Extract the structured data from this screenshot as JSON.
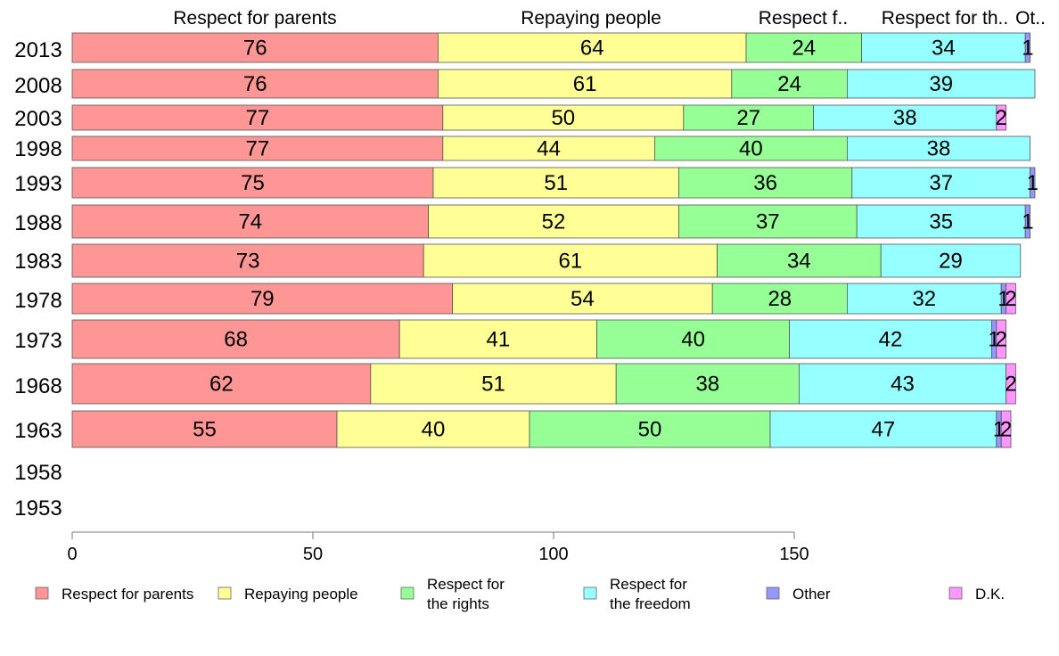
{
  "chart_data": {
    "type": "bar",
    "orientation": "horizontal",
    "stacked": true,
    "title": "",
    "xlabel": "",
    "ylabel": "",
    "xlim": [
      0,
      200
    ],
    "x_ticks": [
      0,
      50,
      100,
      150
    ],
    "grid": false,
    "legend_position": "bottom",
    "categories": [
      "2013",
      "2008",
      "2003",
      "1998",
      "1993",
      "1988",
      "1983",
      "1978",
      "1973",
      "1968",
      "1963",
      "1958",
      "1953"
    ],
    "column_headers": [
      "Respect for parents",
      "Repaying people",
      "Respect f..",
      "Respect for th..",
      "Ot.."
    ],
    "legend_entries": [
      "Respect for parents",
      "Repaying people",
      "Respect for\nthe rights",
      "Respect for\nthe freedom",
      "Other",
      "D.K."
    ],
    "series": [
      {
        "name": "Respect for parents",
        "color": "#ff9696",
        "values": [
          76,
          76,
          77,
          77,
          75,
          74,
          73,
          79,
          68,
          62,
          55,
          null,
          null
        ]
      },
      {
        "name": "Repaying people",
        "color": "#ffff96",
        "values": [
          64,
          61,
          50,
          44,
          51,
          52,
          61,
          54,
          41,
          51,
          40,
          null,
          null
        ]
      },
      {
        "name": "Respect for the rights",
        "color": "#96ff96",
        "values": [
          24,
          24,
          27,
          40,
          36,
          37,
          34,
          28,
          40,
          38,
          50,
          null,
          null
        ]
      },
      {
        "name": "Respect for the freedom",
        "color": "#96ffff",
        "values": [
          34,
          39,
          38,
          38,
          37,
          35,
          29,
          32,
          42,
          43,
          47,
          null,
          null
        ]
      },
      {
        "name": "Other",
        "color": "#9696ff",
        "values": [
          1,
          0,
          0,
          0,
          1,
          1,
          0,
          1,
          1,
          0,
          1,
          null,
          null
        ]
      },
      {
        "name": "D.K.",
        "color": "#ff96ff",
        "values": [
          0,
          0,
          2,
          0,
          0,
          0,
          0,
          2,
          2,
          2,
          2,
          null,
          null
        ]
      }
    ]
  }
}
